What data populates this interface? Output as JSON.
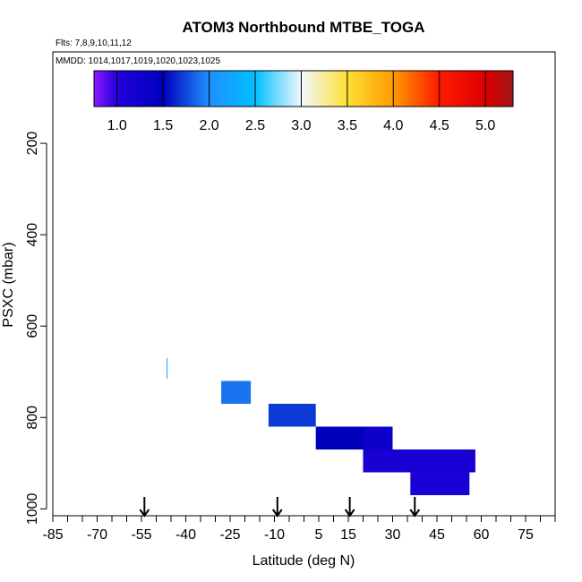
{
  "chart_data": {
    "type": "heatmap",
    "title": "ATOM3 Northbound MTBE_TOGA",
    "flights_label": "Flts: 7,8,9,10,11,12",
    "mmdd_label": "MMDD: 1014,1017,1019,1020,1023,1025",
    "xlabel": "Latitude (deg N)",
    "ylabel": "PSXC (mbar)",
    "xlim": [
      -85,
      85
    ],
    "ylim": [
      1015,
      0
    ],
    "x_ticks": [
      "-85",
      "-70",
      "-55",
      "-40",
      "-25",
      "-10",
      "5",
      "15",
      "30",
      "45",
      "60",
      "75"
    ],
    "x_tick_values": [
      -85,
      -70,
      -55,
      -40,
      -25,
      -10,
      5,
      15,
      30,
      45,
      60,
      75
    ],
    "x_minor_step": 5,
    "y_ticks": [
      "200",
      "400",
      "600",
      "800",
      "1000"
    ],
    "y_tick_values": [
      200,
      400,
      600,
      800,
      1000
    ],
    "colorbar": {
      "range": [
        0.75,
        5.3
      ],
      "tick_labels": [
        "1.0",
        "1.5",
        "2.0",
        "2.5",
        "3.0",
        "3.5",
        "4.0",
        "4.5",
        "5.0"
      ],
      "tick_values": [
        1.0,
        1.5,
        2.0,
        2.5,
        3.0,
        3.5,
        4.0,
        4.5,
        5.0
      ],
      "stops": [
        {
          "v": 0.75,
          "c": "#8c1aff"
        },
        {
          "v": 1.0,
          "c": "#2200dd"
        },
        {
          "v": 1.5,
          "c": "#0000bb"
        },
        {
          "v": 2.0,
          "c": "#1e90ff"
        },
        {
          "v": 2.5,
          "c": "#00bfff"
        },
        {
          "v": 3.0,
          "c": "#f0f8ff"
        },
        {
          "v": 3.5,
          "c": "#ffe033"
        },
        {
          "v": 4.0,
          "c": "#ff9a00"
        },
        {
          "v": 4.5,
          "c": "#ff1a00"
        },
        {
          "v": 5.0,
          "c": "#dd0000"
        },
        {
          "v": 5.3,
          "c": "#a01515"
        }
      ]
    },
    "cells": [
      {
        "lat0": -46.5,
        "lat1": -46.2,
        "p0": 670,
        "p1": 715,
        "value": 2.2
      },
      {
        "lat0": -28,
        "lat1": -18,
        "p0": 720,
        "p1": 770,
        "value": 1.9
      },
      {
        "lat0": -12,
        "lat1": 4,
        "p0": 770,
        "p1": 820,
        "value": 1.7
      },
      {
        "lat0": 4,
        "lat1": 20,
        "p0": 820,
        "p1": 870,
        "value": 1.5
      },
      {
        "lat0": 20,
        "lat1": 30,
        "p0": 820,
        "p1": 870,
        "value": 1.3
      },
      {
        "lat0": 20,
        "lat1": 58,
        "p0": 870,
        "p1": 920,
        "value": 1.15
      },
      {
        "lat0": 36,
        "lat1": 56,
        "p0": 920,
        "p1": 970,
        "value": 1.1
      }
    ],
    "arrow_latitudes": [
      -54,
      -9,
      15.5,
      37.5
    ]
  }
}
